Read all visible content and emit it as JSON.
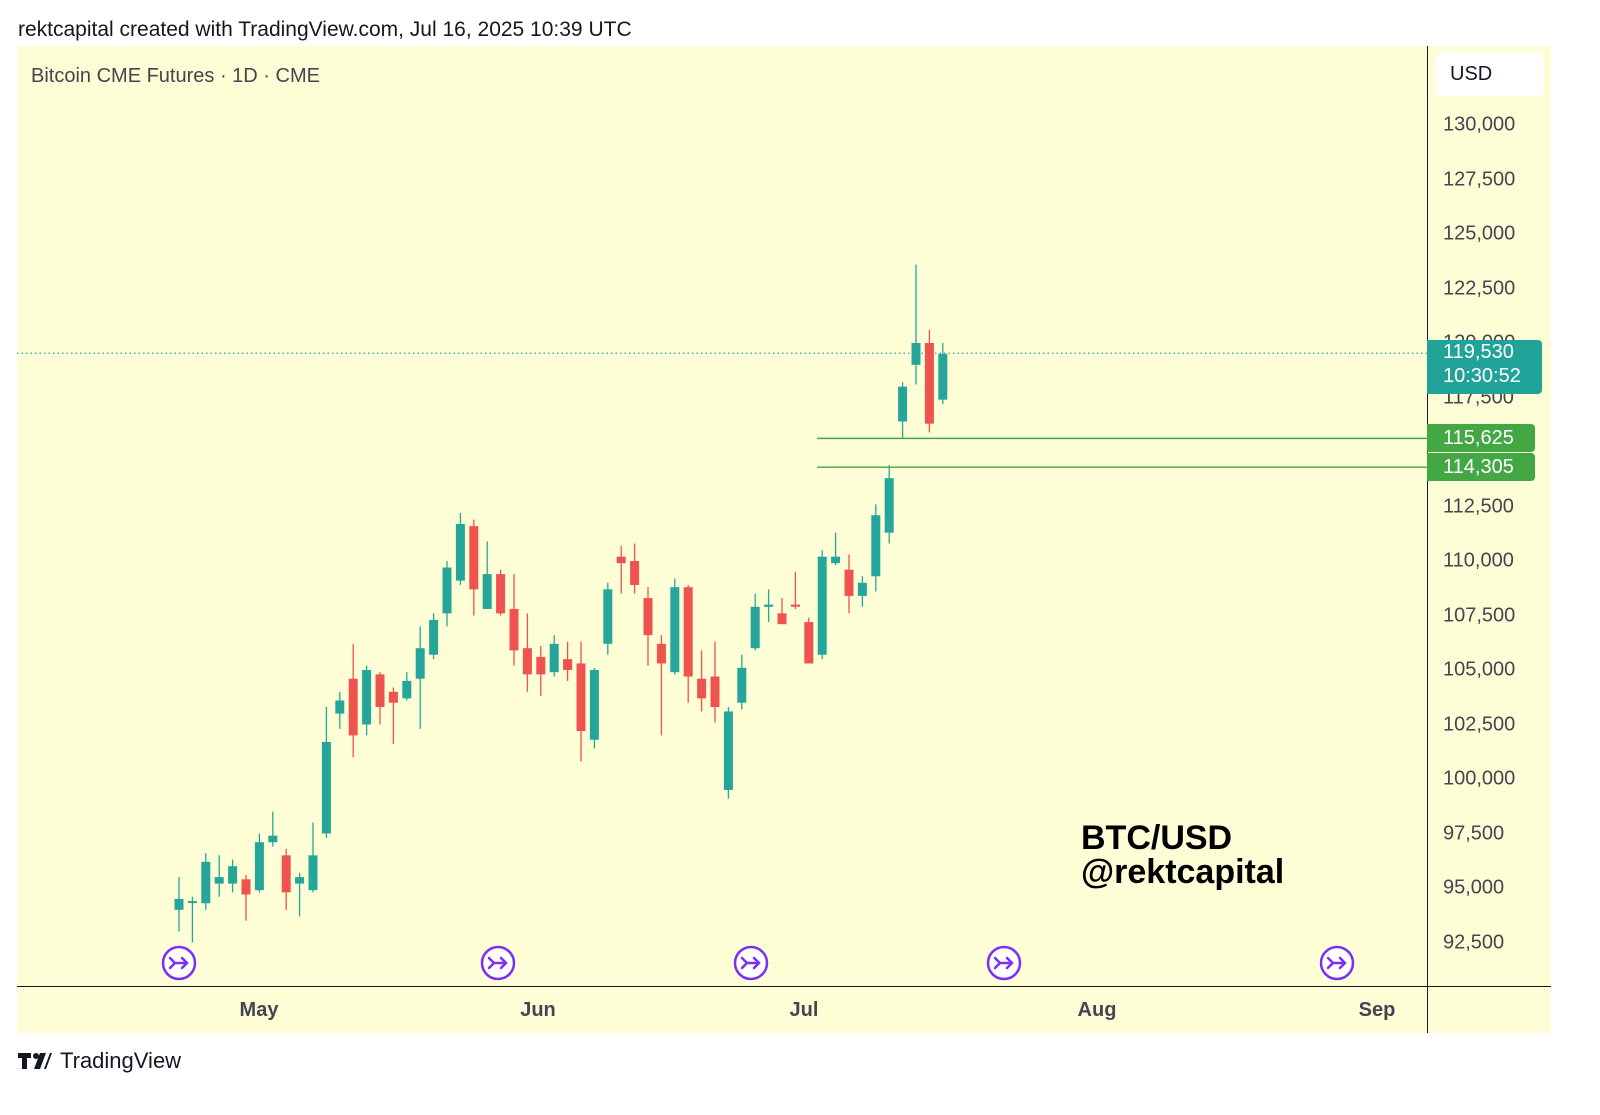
{
  "header": {
    "caption": "rektcapital created with TradingView.com, Jul 16, 2025 10:39 UTC"
  },
  "symbol_line": "Bitcoin CME Futures · 1D · CME",
  "currency": "USD",
  "last_price": {
    "price": "119,530",
    "countdown": "10:30:52"
  },
  "levels": [
    {
      "label": "115,625",
      "value": 115625
    },
    {
      "label": "114,305",
      "value": 114305
    }
  ],
  "watermark": {
    "line1": "BTC/USD",
    "line2": "@rektcapital"
  },
  "footer": {
    "brand": "TradingView",
    "logo_icon": "tradingview-logo-icon"
  },
  "colors": {
    "up": "#26a69a",
    "down": "#ef5350",
    "level": "#43a843",
    "last": "#22a39a",
    "event": "#7b2ff7",
    "background": "#fdfdd6"
  },
  "chart_data": {
    "type": "candlestick",
    "title": "Bitcoin CME Futures · 1D · CME",
    "y_ticks": [
      130000,
      127500,
      125000,
      122500,
      120000,
      117500,
      112500,
      110000,
      107500,
      105000,
      102500,
      100000,
      97500,
      95000,
      92500
    ],
    "y_tick_labels": [
      "130,000",
      "127,500",
      "125,000",
      "122,500",
      "120,000",
      "117,500",
      "112,500",
      "110,000",
      "107,500",
      "105,000",
      "102,500",
      "100,000",
      "97,500",
      "95,000",
      "92,500"
    ],
    "x_months": [
      "May",
      "Jun",
      "Jul",
      "Aug",
      "Sep"
    ],
    "grid": false,
    "last_price_line": 119530,
    "horizontal_levels": [
      115625,
      114305
    ],
    "event_markers": 5,
    "candles": [
      {
        "o": 94000,
        "h": 95500,
        "l": 93000,
        "c": 94500
      },
      {
        "o": 94400,
        "h": 94600,
        "l": 92500,
        "c": 94400
      },
      {
        "o": 94300,
        "h": 96600,
        "l": 94000,
        "c": 96200
      },
      {
        "o": 95200,
        "h": 96500,
        "l": 94600,
        "c": 95500
      },
      {
        "o": 95200,
        "h": 96300,
        "l": 94800,
        "c": 96000
      },
      {
        "o": 95400,
        "h": 95600,
        "l": 93500,
        "c": 94700
      },
      {
        "o": 94900,
        "h": 97500,
        "l": 94800,
        "c": 97100
      },
      {
        "o": 97100,
        "h": 98500,
        "l": 96900,
        "c": 97400
      },
      {
        "o": 96500,
        "h": 96800,
        "l": 94000,
        "c": 94800
      },
      {
        "o": 95200,
        "h": 95700,
        "l": 93700,
        "c": 95500
      },
      {
        "o": 94900,
        "h": 98000,
        "l": 94800,
        "c": 96500
      },
      {
        "o": 97500,
        "h": 103300,
        "l": 97300,
        "c": 101700
      },
      {
        "o": 103000,
        "h": 104000,
        "l": 102300,
        "c": 103600
      },
      {
        "o": 104600,
        "h": 106200,
        "l": 101000,
        "c": 102000
      },
      {
        "o": 102500,
        "h": 105200,
        "l": 102000,
        "c": 105000
      },
      {
        "o": 104800,
        "h": 104900,
        "l": 102500,
        "c": 103300
      },
      {
        "o": 104000,
        "h": 104200,
        "l": 101600,
        "c": 103500
      },
      {
        "o": 103700,
        "h": 104900,
        "l": 103600,
        "c": 104500
      },
      {
        "o": 104600,
        "h": 107000,
        "l": 102300,
        "c": 106000
      },
      {
        "o": 105700,
        "h": 107600,
        "l": 105500,
        "c": 107300
      },
      {
        "o": 107600,
        "h": 110000,
        "l": 107000,
        "c": 109700
      },
      {
        "o": 109100,
        "h": 112200,
        "l": 108900,
        "c": 111700
      },
      {
        "o": 111600,
        "h": 111900,
        "l": 107500,
        "c": 108700
      },
      {
        "o": 107800,
        "h": 110900,
        "l": 107800,
        "c": 109400
      },
      {
        "o": 109400,
        "h": 109600,
        "l": 107500,
        "c": 107600
      },
      {
        "o": 107800,
        "h": 109400,
        "l": 105200,
        "c": 105900
      },
      {
        "o": 106000,
        "h": 107600,
        "l": 104000,
        "c": 104800
      },
      {
        "o": 105600,
        "h": 106100,
        "l": 103800,
        "c": 104800
      },
      {
        "o": 104900,
        "h": 106600,
        "l": 104700,
        "c": 106200
      },
      {
        "o": 105500,
        "h": 106300,
        "l": 104500,
        "c": 105000
      },
      {
        "o": 105300,
        "h": 106300,
        "l": 100800,
        "c": 102200
      },
      {
        "o": 101800,
        "h": 105100,
        "l": 101400,
        "c": 105000
      },
      {
        "o": 106200,
        "h": 109000,
        "l": 105700,
        "c": 108700
      },
      {
        "o": 110200,
        "h": 110700,
        "l": 108500,
        "c": 109900
      },
      {
        "o": 110000,
        "h": 110800,
        "l": 108500,
        "c": 108900
      },
      {
        "o": 108300,
        "h": 108800,
        "l": 105200,
        "c": 106600
      },
      {
        "o": 106200,
        "h": 106600,
        "l": 102000,
        "c": 105300
      },
      {
        "o": 104900,
        "h": 109200,
        "l": 104800,
        "c": 108800
      },
      {
        "o": 108800,
        "h": 108900,
        "l": 103500,
        "c": 104700
      },
      {
        "o": 104600,
        "h": 105900,
        "l": 103100,
        "c": 103700
      },
      {
        "o": 104700,
        "h": 106300,
        "l": 102600,
        "c": 103300
      },
      {
        "o": 99500,
        "h": 103300,
        "l": 99100,
        "c": 103100
      },
      {
        "o": 103500,
        "h": 105700,
        "l": 103200,
        "c": 105100
      },
      {
        "o": 106000,
        "h": 108500,
        "l": 105900,
        "c": 107900
      },
      {
        "o": 107900,
        "h": 108700,
        "l": 107200,
        "c": 108000
      },
      {
        "o": 107600,
        "h": 108300,
        "l": 107200,
        "c": 107100
      },
      {
        "o": 108000,
        "h": 109500,
        "l": 107800,
        "c": 107900
      },
      {
        "o": 107200,
        "h": 107400,
        "l": 105400,
        "c": 105300
      },
      {
        "o": 105700,
        "h": 110500,
        "l": 105500,
        "c": 110200
      },
      {
        "o": 109900,
        "h": 111300,
        "l": 109800,
        "c": 110200
      },
      {
        "o": 109600,
        "h": 110300,
        "l": 107600,
        "c": 108400
      },
      {
        "o": 108400,
        "h": 109300,
        "l": 107900,
        "c": 109000
      },
      {
        "o": 109300,
        "h": 112600,
        "l": 108600,
        "c": 112100
      },
      {
        "o": 111300,
        "h": 114400,
        "l": 110800,
        "c": 113800
      },
      {
        "o": 116400,
        "h": 118200,
        "l": 115600,
        "c": 118000
      },
      {
        "o": 119000,
        "h": 123600,
        "l": 118100,
        "c": 120000
      },
      {
        "o": 120000,
        "h": 120600,
        "l": 115900,
        "c": 116300
      },
      {
        "o": 117400,
        "h": 120000,
        "l": 117200,
        "c": 119500
      }
    ]
  }
}
